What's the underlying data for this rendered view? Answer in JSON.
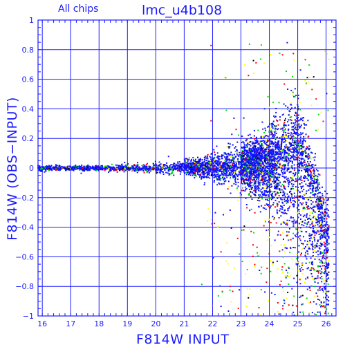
{
  "chart_data": {
    "type": "scatter",
    "title": "lmc_u4b108",
    "label": "All chips",
    "xlabel": "F814W INPUT",
    "ylabel": "F814W (OBS−INPUT)",
    "xlim": [
      15.85,
      26.35
    ],
    "ylim": [
      -1.0,
      1.0
    ],
    "x_ticks": [
      16,
      17,
      18,
      19,
      20,
      21,
      22,
      23,
      24,
      25,
      26
    ],
    "y_ticks": [
      -1,
      -0.8,
      -0.6,
      -0.4,
      -0.2,
      0,
      0.2,
      0.4,
      0.6,
      0.8,
      1
    ],
    "x_tick_labels": [
      "16",
      "17",
      "18",
      "19",
      "20",
      "21",
      "22",
      "23",
      "24",
      "25",
      "26"
    ],
    "y_tick_labels": [
      "−1",
      "−0.8",
      "−0.6",
      "−0.4",
      "−0.2",
      "0",
      "0.2",
      "0.4",
      "0.6",
      "0.8",
      "1"
    ],
    "grid": true,
    "colors": {
      "axis": "#1a1aff",
      "grid": "#1a1aff",
      "text": "#1a1aff"
    },
    "series": [
      {
        "color": "#1010ff",
        "x": [
          15.9,
          16.3,
          16.8,
          17.3,
          17.8,
          18.3,
          18.8,
          19.3,
          19.8,
          20.3,
          20.8,
          21.3,
          21.8,
          22.3,
          22.8,
          23.3,
          23.8,
          24.2,
          24.5,
          24.8,
          25.0,
          25.2,
          25.4,
          25.6,
          25.8,
          26.0
        ],
        "y_center": [
          0.0,
          0.0,
          0.0,
          0.0,
          0.0,
          0.0,
          0.0,
          0.0,
          0.0,
          0.0,
          0.0,
          0.0,
          0.0,
          0.0,
          0.01,
          0.02,
          0.03,
          0.05,
          0.06,
          0.06,
          0.05,
          0.0,
          -0.08,
          -0.2,
          -0.35,
          -0.5
        ],
        "y_upper": [
          0.02,
          0.015,
          0.015,
          0.015,
          0.015,
          0.02,
          0.02,
          0.025,
          0.03,
          0.035,
          0.04,
          0.06,
          0.08,
          0.1,
          0.13,
          0.17,
          0.22,
          0.3,
          0.38,
          0.42,
          0.4,
          0.3,
          0.2,
          0.05,
          -0.1,
          -0.25
        ],
        "y_lower": [
          -0.02,
          -0.015,
          -0.015,
          -0.015,
          -0.015,
          -0.02,
          -0.02,
          -0.025,
          -0.03,
          -0.035,
          -0.04,
          -0.05,
          -0.07,
          -0.09,
          -0.12,
          -0.16,
          -0.22,
          -0.3,
          -0.45,
          -0.6,
          -0.75,
          -0.85,
          -0.9,
          -0.95,
          -1.0,
          -1.0
        ]
      },
      {
        "color": "#00dd00"
      },
      {
        "color": "#ff0000"
      },
      {
        "color": "#ffff00"
      },
      {
        "color": "#000000"
      }
    ]
  }
}
